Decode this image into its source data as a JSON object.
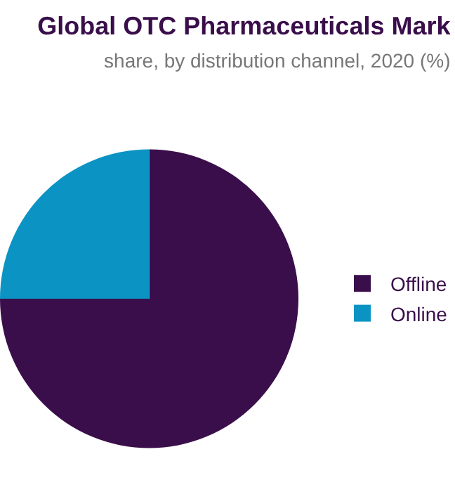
{
  "chart_data": {
    "type": "pie",
    "title": "Global OTC Pharmaceuticals Mark",
    "subtitle": "share, by distribution channel, 2020 (%)",
    "categories": [
      "Offline",
      "Online"
    ],
    "values": [
      75,
      25
    ],
    "colors": [
      "#3a0e4b",
      "#0b93c4"
    ],
    "legend": "right"
  }
}
